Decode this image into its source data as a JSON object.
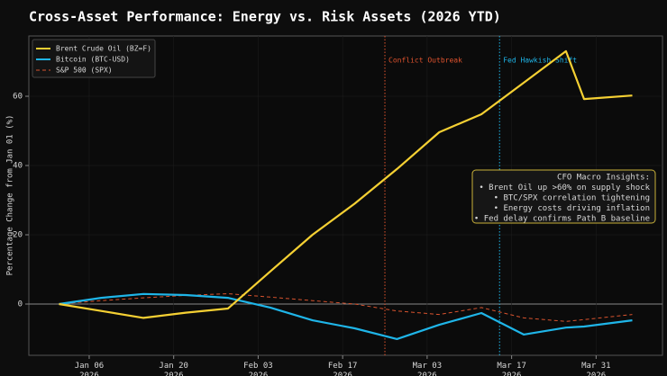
{
  "chart_data": {
    "type": "line",
    "title": "Cross-Asset Performance: Energy vs. Risk Assets (2026 YTD)",
    "ylabel": "Percentage Change from Jan 01 (%)",
    "x": [
      "2026-01-01",
      "2026-01-08",
      "2026-01-15",
      "2026-01-22",
      "2026-01-29",
      "2026-02-05",
      "2026-02-12",
      "2026-02-19",
      "2026-02-26",
      "2026-03-05",
      "2026-03-12",
      "2026-03-19",
      "2026-03-26",
      "2026-03-29",
      "2026-04-06"
    ],
    "series": [
      {
        "name": "Brent Crude Oil (BZ=F)",
        "color": "#f5d033",
        "style": "solid",
        "values": [
          0,
          -2,
          -4,
          -2.5,
          -1.3,
          9.4,
          20,
          29,
          39,
          49.6,
          54.8,
          63.9,
          73,
          59.2,
          60.2
        ]
      },
      {
        "name": "Bitcoin (BTC-USD)",
        "color": "#1fb5e8",
        "style": "solid",
        "values": [
          0,
          1.8,
          2.9,
          2.6,
          1.8,
          -1,
          -4.7,
          -7,
          -10.1,
          -6,
          -2.6,
          -8.8,
          -6.8,
          -6.5,
          -4.7
        ]
      },
      {
        "name": "S&P 500 (SPX)",
        "color": "#d9532e",
        "style": "dashed",
        "values": [
          0,
          1,
          1.8,
          2.5,
          3,
          2,
          1,
          0,
          -2,
          -3,
          -1,
          -4,
          -5,
          -4.5,
          -3
        ]
      }
    ],
    "xlim": [
      "2025-12-27",
      "2026-04-11"
    ],
    "xticks": [
      {
        "value": "2026-01-06",
        "label": [
          "Jan 06",
          "2026"
        ]
      },
      {
        "value": "2026-01-20",
        "label": [
          "Jan 20",
          "2026"
        ]
      },
      {
        "value": "2026-02-03",
        "label": [
          "Feb 03",
          "2026"
        ]
      },
      {
        "value": "2026-02-17",
        "label": [
          "Feb 17",
          "2026"
        ]
      },
      {
        "value": "2026-03-03",
        "label": [
          "Mar 03",
          "2026"
        ]
      },
      {
        "value": "2026-03-17",
        "label": [
          "Mar 17",
          "2026"
        ]
      },
      {
        "value": "2026-03-31",
        "label": [
          "Mar 31",
          "2026"
        ]
      }
    ],
    "ylim": [
      -14.8,
      77.4
    ],
    "yticks": [
      0,
      20,
      40,
      60
    ],
    "grid": true,
    "legend": "upper left",
    "events": [
      {
        "x": "2026-02-24",
        "label": "Conflict Outbreak",
        "color": "#e0532e"
      },
      {
        "x": "2026-03-15",
        "label": "Fed Hawkish Shift",
        "color": "#1fb5e8"
      }
    ],
    "insights": {
      "title": "CFO Macro Insights:",
      "lines": [
        "• Brent Oil up >60% on supply shock",
        "• BTC/SPX correlation tightening",
        "• Energy costs driving inflation",
        "• Fed delay confirms Path B baseline"
      ]
    }
  }
}
